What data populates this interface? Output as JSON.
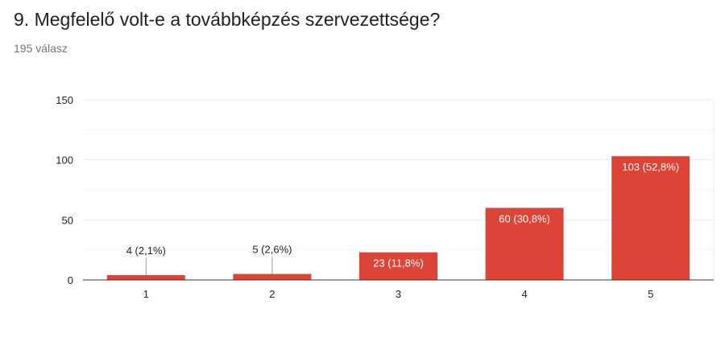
{
  "question_title": "9. Megfelelő volt-e a továbbképzés szervezettsége?",
  "response_count": "195 válasz",
  "colors": {
    "bar": "#db4437",
    "grid": "#ebebeb",
    "axis": "#333333",
    "label_dark": "#222222",
    "label_light": "#ffffff"
  },
  "chart_data": {
    "type": "bar",
    "categories": [
      "1",
      "2",
      "3",
      "4",
      "5"
    ],
    "values": [
      4,
      5,
      23,
      60,
      103
    ],
    "data_labels": [
      "4 (2,1%)",
      "5 (2,6%)",
      "23 (11,8%)",
      "60 (30,8%)",
      "103 (52,8%)"
    ],
    "ylim": [
      0,
      150
    ],
    "yticks": [
      0,
      50,
      100,
      150
    ],
    "grid": true,
    "legend": "none"
  }
}
